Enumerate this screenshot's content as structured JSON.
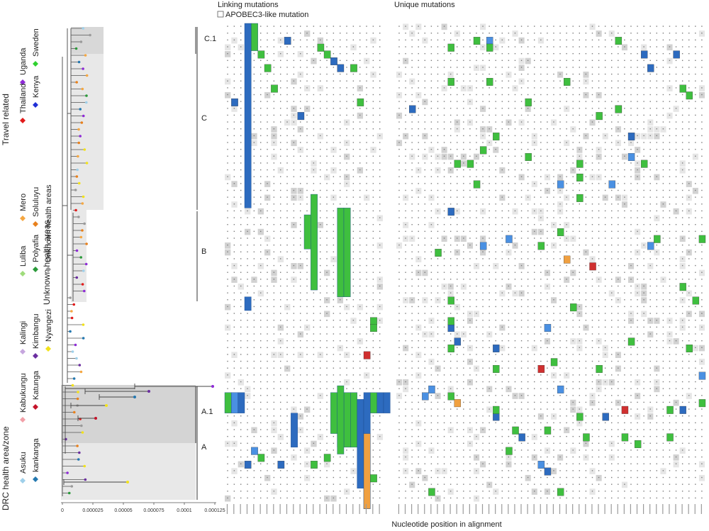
{
  "titles": {
    "linking": "Linking mutations",
    "apobec": "APOBEC3-like mutation",
    "unique": "Unique mutations",
    "xaxis": "Nucleotide position in alignment"
  },
  "legend": {
    "group_travel": "Travel related",
    "group_unknown": "Unknown health areas",
    "group_drc": "DRC health area/zone",
    "entries": [
      {
        "label": "Uganda",
        "color": "#8e2bd6",
        "shape": "diamond"
      },
      {
        "label": "Sweden",
        "color": "#2fd12f",
        "shape": "diamond"
      },
      {
        "label": "Thailand",
        "color": "#e21b1b",
        "shape": "diamond"
      },
      {
        "label": "Kenya",
        "color": "#1f2fd6",
        "shape": "diamond"
      },
      {
        "label": "Mero",
        "color": "#f5a742",
        "shape": "diamond"
      },
      {
        "label": "Soluluyu",
        "color": "#e8801c",
        "shape": "diamond"
      },
      {
        "label": "Luliba",
        "color": "#9fdc7c",
        "shape": "diamond"
      },
      {
        "label": "Polyafia",
        "color": "#2a9a3a",
        "shape": "diamond"
      },
      {
        "label": "Unknown health areas",
        "color": "#9a9a9a",
        "shape": "diamond"
      },
      {
        "label": "Kalingi",
        "color": "#c6a6de",
        "shape": "diamond"
      },
      {
        "label": "Kimbangu",
        "color": "#6b2ea0",
        "shape": "diamond"
      },
      {
        "label": "Nyangezi",
        "color": "#f2e21a",
        "shape": "diamond"
      },
      {
        "label": "Kabukungu",
        "color": "#f2a0a8",
        "shape": "diamond"
      },
      {
        "label": "Katunga",
        "color": "#c4142a",
        "shape": "diamond"
      },
      {
        "label": "Asuku",
        "color": "#9fd0ea",
        "shape": "diamond"
      },
      {
        "label": "kankanga",
        "color": "#2478b0",
        "shape": "diamond"
      }
    ]
  },
  "tree_axis": {
    "ticks": [
      "0",
      "0.000025",
      "0.00005",
      "0.000075",
      "0.0001",
      "0.000125"
    ],
    "range": [
      0,
      0.000125
    ]
  },
  "clades": {
    "c1": "C.1",
    "c": "C",
    "b": "B",
    "a1": "A.1",
    "a": "A"
  },
  "colors": {
    "green": "#3fbf3f",
    "blue": "#2d6bbf",
    "lightblue": "#4a90e2",
    "orange": "#f0a040",
    "red": "#d03030",
    "shade": "#e6e6e6",
    "shade_dark": "#d2d2d2",
    "grid_text": "#7a7a7a"
  },
  "alignment": {
    "rows": 70,
    "linking_cols": 24,
    "unique_cols": 48
  }
}
